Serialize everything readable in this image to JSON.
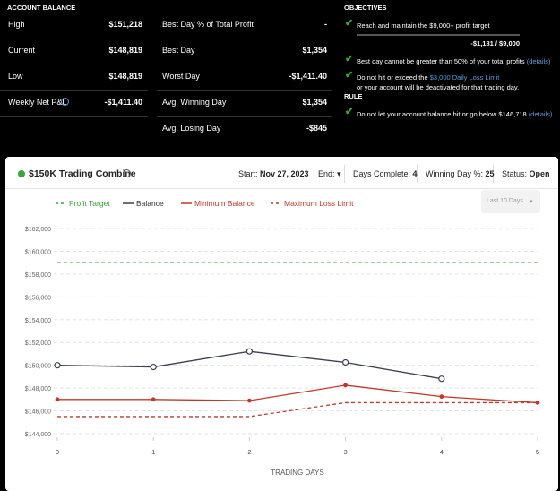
{
  "account_balance": {
    "title": "ACCOUNT BALANCE",
    "rows": [
      [
        "High",
        "$151,218"
      ],
      [
        "Current",
        "$148,819"
      ],
      [
        "Low",
        "$148,819"
      ],
      [
        "Weekly Net P&L",
        "-$1,411.40"
      ]
    ]
  },
  "stats": {
    "rows": [
      [
        "Best Day % of Total Profit",
        "-"
      ],
      [
        "Best Day",
        "$1,354"
      ],
      [
        "Worst Day",
        "-$1,411.40"
      ],
      [
        "Avg. Winning Day",
        "$1,354"
      ],
      [
        "Avg. Losing Day",
        "-$845"
      ]
    ]
  },
  "objectives": {
    "title": "OBJECTIVES",
    "items": [
      {
        "text": "Reach and maintain the $9,000+ profit target",
        "progress": "-$1,181 / $9,000"
      },
      {
        "text": "Best day cannot be greater than 50% of your total profits",
        "link": "(details)"
      },
      {
        "text": "Do not hit or exceed the",
        "link": "$3,000 Daily Loss Limit",
        "after": "or your account will be deactivated for that trading day."
      }
    ]
  },
  "rule": {
    "title": "RULE",
    "items": [
      {
        "text": "Do not let your account balance hit or go below $146,718",
        "link": "(details)"
      }
    ]
  },
  "combine": {
    "title": "$150K Trading Combine",
    "start_label": "Start:",
    "start": "Nov 27, 2023",
    "end_label": "End:",
    "days_complete_label": "Days Complete:",
    "days_complete": "4",
    "winning_label": "Winning Day %:",
    "winning": "25",
    "status_label": "Status:",
    "status": "Open",
    "range": "Last 10 Days"
  },
  "chart_data": {
    "type": "line",
    "x_label": "TRADING DAYS",
    "x": [
      0,
      1,
      2,
      3,
      4,
      5
    ],
    "xlim": [
      0,
      5
    ],
    "xticks": [
      0,
      1,
      2,
      3,
      4,
      5
    ],
    "ylim": [
      144000,
      162000
    ],
    "yticks": [
      {
        "value": 144000,
        "label": "$144,000"
      },
      {
        "value": 146000,
        "label": "$146,000"
      },
      {
        "value": 148000,
        "label": "$148,000"
      },
      {
        "value": 150000,
        "label": "$150,000"
      },
      {
        "value": 152000,
        "label": "$152,000"
      },
      {
        "value": 154000,
        "label": "$154,000"
      },
      {
        "value": 156000,
        "label": "$156,000"
      },
      {
        "value": 158000,
        "label": "$158,000"
      },
      {
        "value": 160000,
        "label": "$160,000"
      },
      {
        "value": 162000,
        "label": "$162,000"
      }
    ],
    "grid": true,
    "series": [
      {
        "name": "Profit Target",
        "color": "#3aa53a",
        "dashed": true,
        "marker": "none",
        "values": [
          159000,
          159000,
          159000,
          159000,
          159000,
          159000
        ]
      },
      {
        "name": "Balance",
        "color": "#3b3f4e",
        "dashed": false,
        "marker": "hollow",
        "values": [
          150000,
          149850,
          151218,
          150250,
          148819,
          null
        ]
      },
      {
        "name": "Minimum Balance",
        "color": "#c0392b",
        "dashed": false,
        "marker": "dot",
        "values": [
          147000,
          147000,
          146900,
          148250,
          147250,
          146718
        ]
      },
      {
        "name": "Maximum Loss Limit",
        "color": "#c0392b",
        "dashed": true,
        "marker": "none",
        "values": [
          145500,
          145500,
          145500,
          146718,
          146718,
          146718
        ]
      }
    ]
  }
}
